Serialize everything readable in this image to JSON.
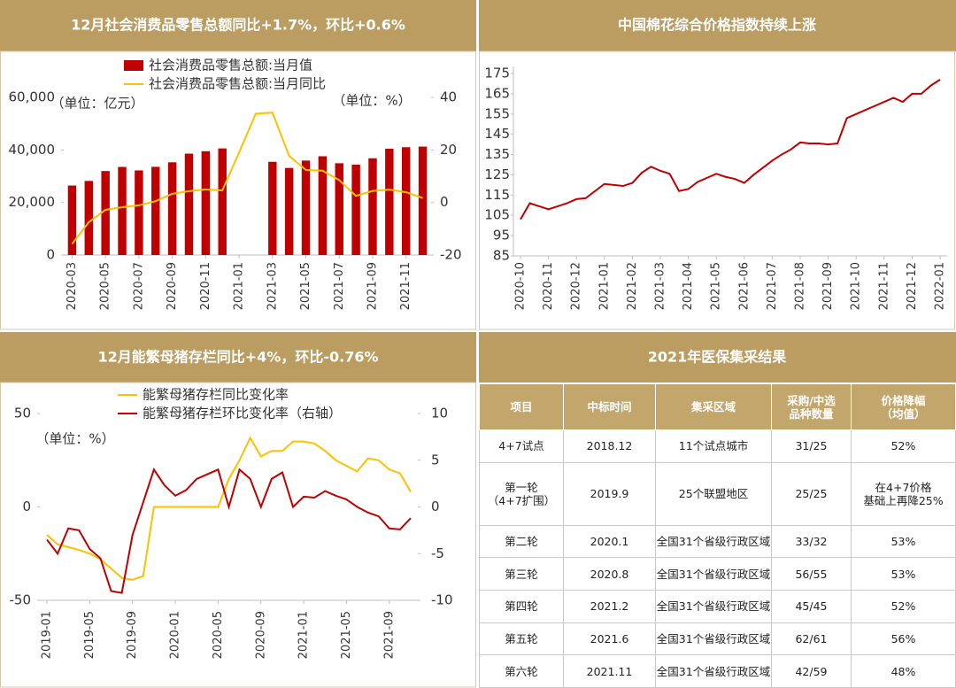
{
  "chart_data": [
    {
      "type": "bar",
      "title": "12月社会消费品零售总额同比+1.7%，环比+0.6%",
      "categories": [
        "2020-03",
        null,
        "2020-05",
        null,
        "2020-07",
        null,
        "2020-09",
        null,
        "2020-11",
        null,
        "2021-01",
        null,
        "2021-03",
        null,
        "2021-05",
        null,
        "2021-07",
        null,
        "2021-09",
        null,
        "2021-11",
        null
      ],
      "series": [
        {
          "name": "社会消费品零售总额:当月值",
          "type": "bar",
          "color": "#c00000",
          "values": [
            26450,
            28200,
            31970,
            33530,
            32200,
            33570,
            35300,
            38580,
            39510,
            40570,
            null,
            null,
            35480,
            33150,
            35950,
            37590,
            34930,
            34400,
            36830,
            40450,
            41040,
            41270
          ]
        },
        {
          "name": "社会消费品零售总额:当月同比",
          "type": "line",
          "axis": "y2",
          "color": "#ffc000",
          "values": [
            -15.8,
            -7.5,
            -2.8,
            -1.8,
            -1.1,
            0.5,
            3.3,
            4.3,
            5.0,
            4.6,
            19,
            33.8,
            34.2,
            17.7,
            12.4,
            12.1,
            8.5,
            2.5,
            4.4,
            4.9,
            3.9,
            1.7
          ]
        }
      ],
      "ylim": [
        0,
        60000
      ],
      "yticks": [
        0,
        {
          "value": 20000,
          "label": "20,000"
        },
        {
          "value": 40000,
          "label": "40,000"
        },
        {
          "value": 60000,
          "label": "60,000"
        }
      ],
      "y2lim": [
        -20,
        40
      ],
      "y2ticks": [
        -20,
        0,
        20,
        40
      ],
      "annotations": [
        "（单位：亿元）",
        "（单位：%）"
      ],
      "grid": false,
      "legend": "top"
    },
    {
      "type": "line",
      "title": "中国棉花综合价格指数持续上涨",
      "categories": [
        "2020-10",
        null,
        null,
        "2020-11",
        null,
        null,
        "2020-12",
        null,
        null,
        "2021-01",
        null,
        null,
        "2021-02",
        null,
        null,
        "2021-03",
        null,
        null,
        "2021-04",
        null,
        null,
        "2021-05",
        null,
        null,
        "2021-06",
        null,
        null,
        "2021-07",
        null,
        null,
        "2021-08",
        null,
        null,
        "2021-09",
        null,
        null,
        "2021-10",
        null,
        null,
        "2021-11",
        null,
        null,
        "2021-12",
        null,
        null,
        "2022-01"
      ],
      "series": [
        {
          "color": "#c00000",
          "values": [
            103,
            111,
            109.5,
            108,
            109.5,
            111,
            113,
            113.5,
            117,
            120.5,
            120,
            119.5,
            121,
            126,
            129,
            127,
            125.5,
            117,
            118,
            121.5,
            123.5,
            125.5,
            124,
            123,
            121,
            125,
            128.5,
            132,
            135,
            137.5,
            141,
            140.5,
            140.5,
            140,
            140.5,
            153,
            155,
            157,
            159,
            161,
            163,
            161,
            165,
            165,
            169,
            172
          ]
        }
      ],
      "ylim": [
        85,
        175
      ],
      "yticks": [
        85,
        95,
        105,
        115,
        125,
        135,
        145,
        155,
        165,
        175
      ],
      "grid": false
    },
    {
      "type": "line",
      "title": "12月能繁母猪存栏同比+4%，环比-0.76%",
      "categories": [
        "2019-01",
        null,
        null,
        null,
        "2019-05",
        null,
        null,
        null,
        "2019-09",
        null,
        null,
        null,
        "2020-01",
        null,
        null,
        null,
        "2020-05",
        null,
        null,
        null,
        "2020-09",
        null,
        null,
        null,
        "2021-01",
        null,
        null,
        null,
        "2021-05",
        null,
        null,
        null,
        "2021-09",
        null,
        null
      ],
      "series": [
        {
          "name": "能繁母猪存栏同比变化率",
          "color": "#ffc000",
          "values": [
            -15,
            -20,
            -21.5,
            -23,
            -25,
            -28,
            -33,
            -38,
            -39,
            -37,
            0,
            0,
            0,
            0,
            0,
            0,
            0,
            15,
            25,
            37,
            27,
            30,
            30,
            35,
            35,
            34,
            30,
            25,
            22,
            19,
            26,
            25,
            20,
            18,
            8
          ]
        },
        {
          "name": "能繁母猪存栏环比变化率（右轴）",
          "axis": "y2",
          "color": "#c00000",
          "values": [
            -3.5,
            -5,
            -2.3,
            -2.5,
            -4.5,
            -5.5,
            -9,
            -9.2,
            -3,
            0.5,
            4,
            2.3,
            1.2,
            1.8,
            3,
            3.5,
            4,
            0,
            4,
            3,
            0,
            3,
            3.7,
            0,
            1.1,
            1,
            1.7,
            1.2,
            0.8,
            0,
            -0.6,
            -1,
            -2.3,
            -2.4,
            -1.2
          ]
        }
      ],
      "ylim": [
        -50,
        50
      ],
      "yticks": [
        -50,
        0,
        50
      ],
      "y2lim": [
        -10,
        10
      ],
      "y2ticks": [
        -10,
        -5,
        0,
        5,
        10
      ],
      "annotations": [
        "（单位：%）"
      ],
      "grid": false,
      "legend": "top"
    }
  ],
  "table": {
    "title": "2021年医保集采结果",
    "headers": [
      "项目",
      "中标时间",
      "集采区域",
      "采购/中选\n品种数量",
      "价格降幅\n（均值）"
    ],
    "rows": [
      [
        "4+7试点",
        "2018.12",
        "11个试点城市",
        "31/25",
        "52%"
      ],
      [
        "第一轮\n（4+7扩围）",
        "2019.9",
        "25个联盟地区",
        "25/25",
        "在4+7价格\n基础上再降25%"
      ],
      [
        "第二轮",
        "2020.1",
        "全国31个省级行政区域",
        "33/32",
        "53%"
      ],
      [
        "第三轮",
        "2020.8",
        "全国31个省级行政区域",
        "56/55",
        "53%"
      ],
      [
        "第四轮",
        "2021.2",
        "全国31个省级行政区域",
        "45/45",
        "52%"
      ],
      [
        "第五轮",
        "2021.6",
        "全国31个省级行政区域",
        "62/61",
        "56%"
      ],
      [
        "第六轮",
        "2021.11",
        "全国31个省级行政区域",
        "42/59",
        "48%"
      ]
    ]
  }
}
